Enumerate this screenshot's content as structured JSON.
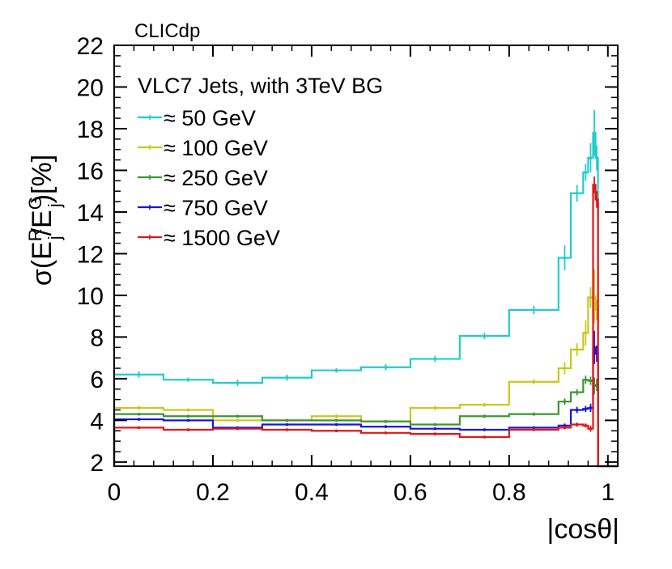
{
  "chart_data": {
    "type": "line",
    "experiment_label": "CLICdp",
    "legend_title": "VLC7 Jets, with 3TeV BG",
    "xlabel": "|cosθ|",
    "ylabel": {
      "base": "σ(E",
      "sup1": "R",
      "sub1": "j",
      "mid": "/E",
      "sup2": "G",
      "sub2": "j",
      "end": ")[%]"
    },
    "xlim": [
      0,
      1.02
    ],
    "ylim": [
      1.8,
      22
    ],
    "x_ticks": [
      0,
      0.2,
      0.4,
      0.6,
      0.8,
      1
    ],
    "x_tick_labels": [
      "0",
      "0.2",
      "0.4",
      "0.6",
      "0.8",
      "1"
    ],
    "y_ticks": [
      2,
      4,
      6,
      8,
      10,
      12,
      14,
      16,
      18,
      20,
      22
    ],
    "y_tick_labels": [
      "2",
      "4",
      "6",
      "8",
      "10",
      "12",
      "14",
      "16",
      "18",
      "20",
      "22"
    ],
    "bin_edges": [
      0,
      0.1,
      0.2,
      0.3,
      0.4,
      0.5,
      0.6,
      0.7,
      0.8,
      0.9,
      0.925,
      0.95,
      0.96,
      0.97,
      0.975,
      0.98
    ],
    "tail": {
      "x_end": 1.02,
      "y": 1.8
    },
    "series": [
      {
        "name": "≈ 50 GeV",
        "color": "#22cccc",
        "values": [
          6.2,
          5.95,
          5.8,
          6.05,
          6.4,
          6.55,
          6.95,
          8.05,
          9.3,
          11.8,
          14.9,
          15.9,
          16.6,
          17.8,
          16.6
        ],
        "errors": [
          0.15,
          0.1,
          0.15,
          0.15,
          0.1,
          0.15,
          0.15,
          0.15,
          0.2,
          0.6,
          0.4,
          0.4,
          0.7,
          1.1,
          0.6
        ]
      },
      {
        "name": "≈ 100 GeV",
        "color": "#c8c81e",
        "values": [
          4.6,
          4.5,
          4.0,
          4.0,
          4.2,
          3.95,
          4.6,
          4.75,
          5.85,
          6.5,
          7.4,
          8.2,
          9.9,
          9.95,
          9.3
        ],
        "errors": [
          0.1,
          0.08,
          0.08,
          0.08,
          0.1,
          0.08,
          0.1,
          0.1,
          0.12,
          0.3,
          0.3,
          0.6,
          0.5,
          1.3,
          0.5
        ]
      },
      {
        "name": "≈ 250 GeV",
        "color": "#3c9632",
        "values": [
          4.3,
          4.2,
          4.2,
          4.0,
          4.0,
          3.95,
          3.8,
          4.2,
          4.3,
          4.9,
          5.35,
          5.95,
          5.9,
          5.65,
          5.7
        ],
        "errors": [
          0.06,
          0.06,
          0.06,
          0.06,
          0.06,
          0.06,
          0.06,
          0.08,
          0.08,
          0.15,
          0.15,
          0.2,
          0.2,
          0.4,
          0.3
        ]
      },
      {
        "name": "≈ 750 GeV",
        "color": "#1414e6",
        "values": [
          4.05,
          4.0,
          3.65,
          3.8,
          3.8,
          3.7,
          3.6,
          3.55,
          3.65,
          3.75,
          4.5,
          4.55,
          4.6,
          7.5,
          7.2
        ],
        "errors": [
          0.05,
          0.05,
          0.05,
          0.05,
          0.05,
          0.05,
          0.05,
          0.05,
          0.05,
          0.1,
          0.15,
          0.15,
          0.2,
          0.8,
          0.4
        ]
      },
      {
        "name": "≈ 1500 GeV",
        "color": "#e61414",
        "values": [
          3.65,
          3.55,
          3.6,
          3.55,
          3.5,
          3.4,
          3.35,
          3.2,
          3.55,
          3.65,
          3.8,
          3.75,
          3.6,
          15.3,
          14.6
        ],
        "errors": [
          0.05,
          0.05,
          0.05,
          0.05,
          0.05,
          0.05,
          0.05,
          0.05,
          0.05,
          0.08,
          0.1,
          0.1,
          0.15,
          0.4,
          0.4
        ]
      }
    ]
  }
}
